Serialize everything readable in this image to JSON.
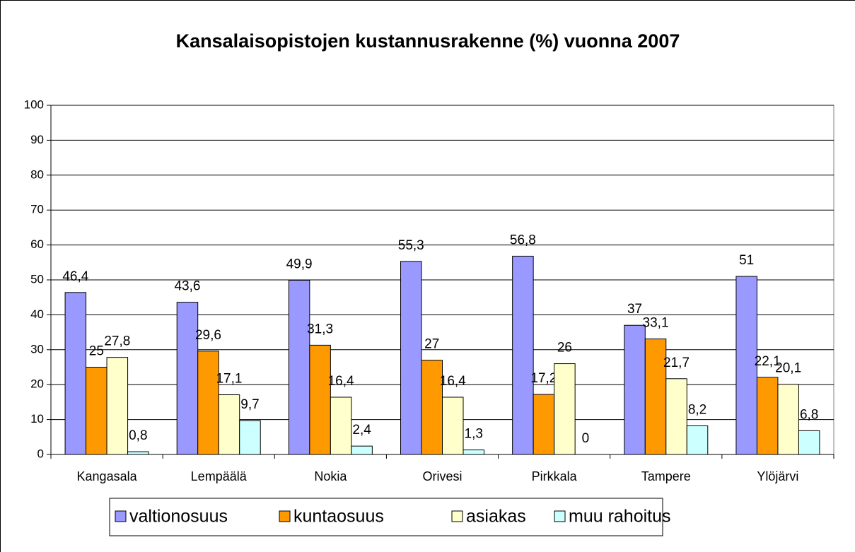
{
  "chart_data": {
    "type": "bar",
    "title": "Kansalaisopistojen kustannusrakenne (%) vuonna 2007",
    "categories": [
      "Kangasala",
      "Lempäälä",
      "Nokia",
      "Orivesi",
      "Pirkkala",
      "Tampere",
      "Ylöjärvi"
    ],
    "series": [
      {
        "name": "valtionosuus",
        "color": "#9999ff",
        "values": [
          46.4,
          43.6,
          49.9,
          55.3,
          56.8,
          37,
          51
        ],
        "value_labels": [
          "46,4",
          "43,6",
          "49,9",
          "55,3",
          "56,8",
          "37",
          "51"
        ]
      },
      {
        "name": "kuntaosuus",
        "color": "#ff9900",
        "values": [
          25,
          29.6,
          31.3,
          27,
          17.2,
          33.1,
          22.1
        ],
        "value_labels": [
          "25",
          "29,6",
          "31,3",
          "27",
          "17,2",
          "33,1",
          "22,1"
        ]
      },
      {
        "name": "asiakas",
        "color": "#ffffcc",
        "values": [
          27.8,
          17.1,
          16.4,
          16.4,
          26,
          21.7,
          20.1
        ],
        "value_labels": [
          "27,8",
          "17,1",
          "16,4",
          "16,4",
          "26",
          "21,7",
          "20,1"
        ]
      },
      {
        "name": "muu rahoitus",
        "color": "#ccffff",
        "values": [
          0.8,
          9.7,
          2.4,
          1.3,
          0,
          8.2,
          6.8
        ],
        "value_labels": [
          "0,8",
          "9,7",
          "2,4",
          "1,3",
          "0",
          "8,2",
          "6,8"
        ]
      }
    ],
    "ylim": [
      0,
      100
    ],
    "yticks": [
      0,
      10,
      20,
      30,
      40,
      50,
      60,
      70,
      80,
      90,
      100
    ],
    "grid": true,
    "legend": "bottom"
  }
}
